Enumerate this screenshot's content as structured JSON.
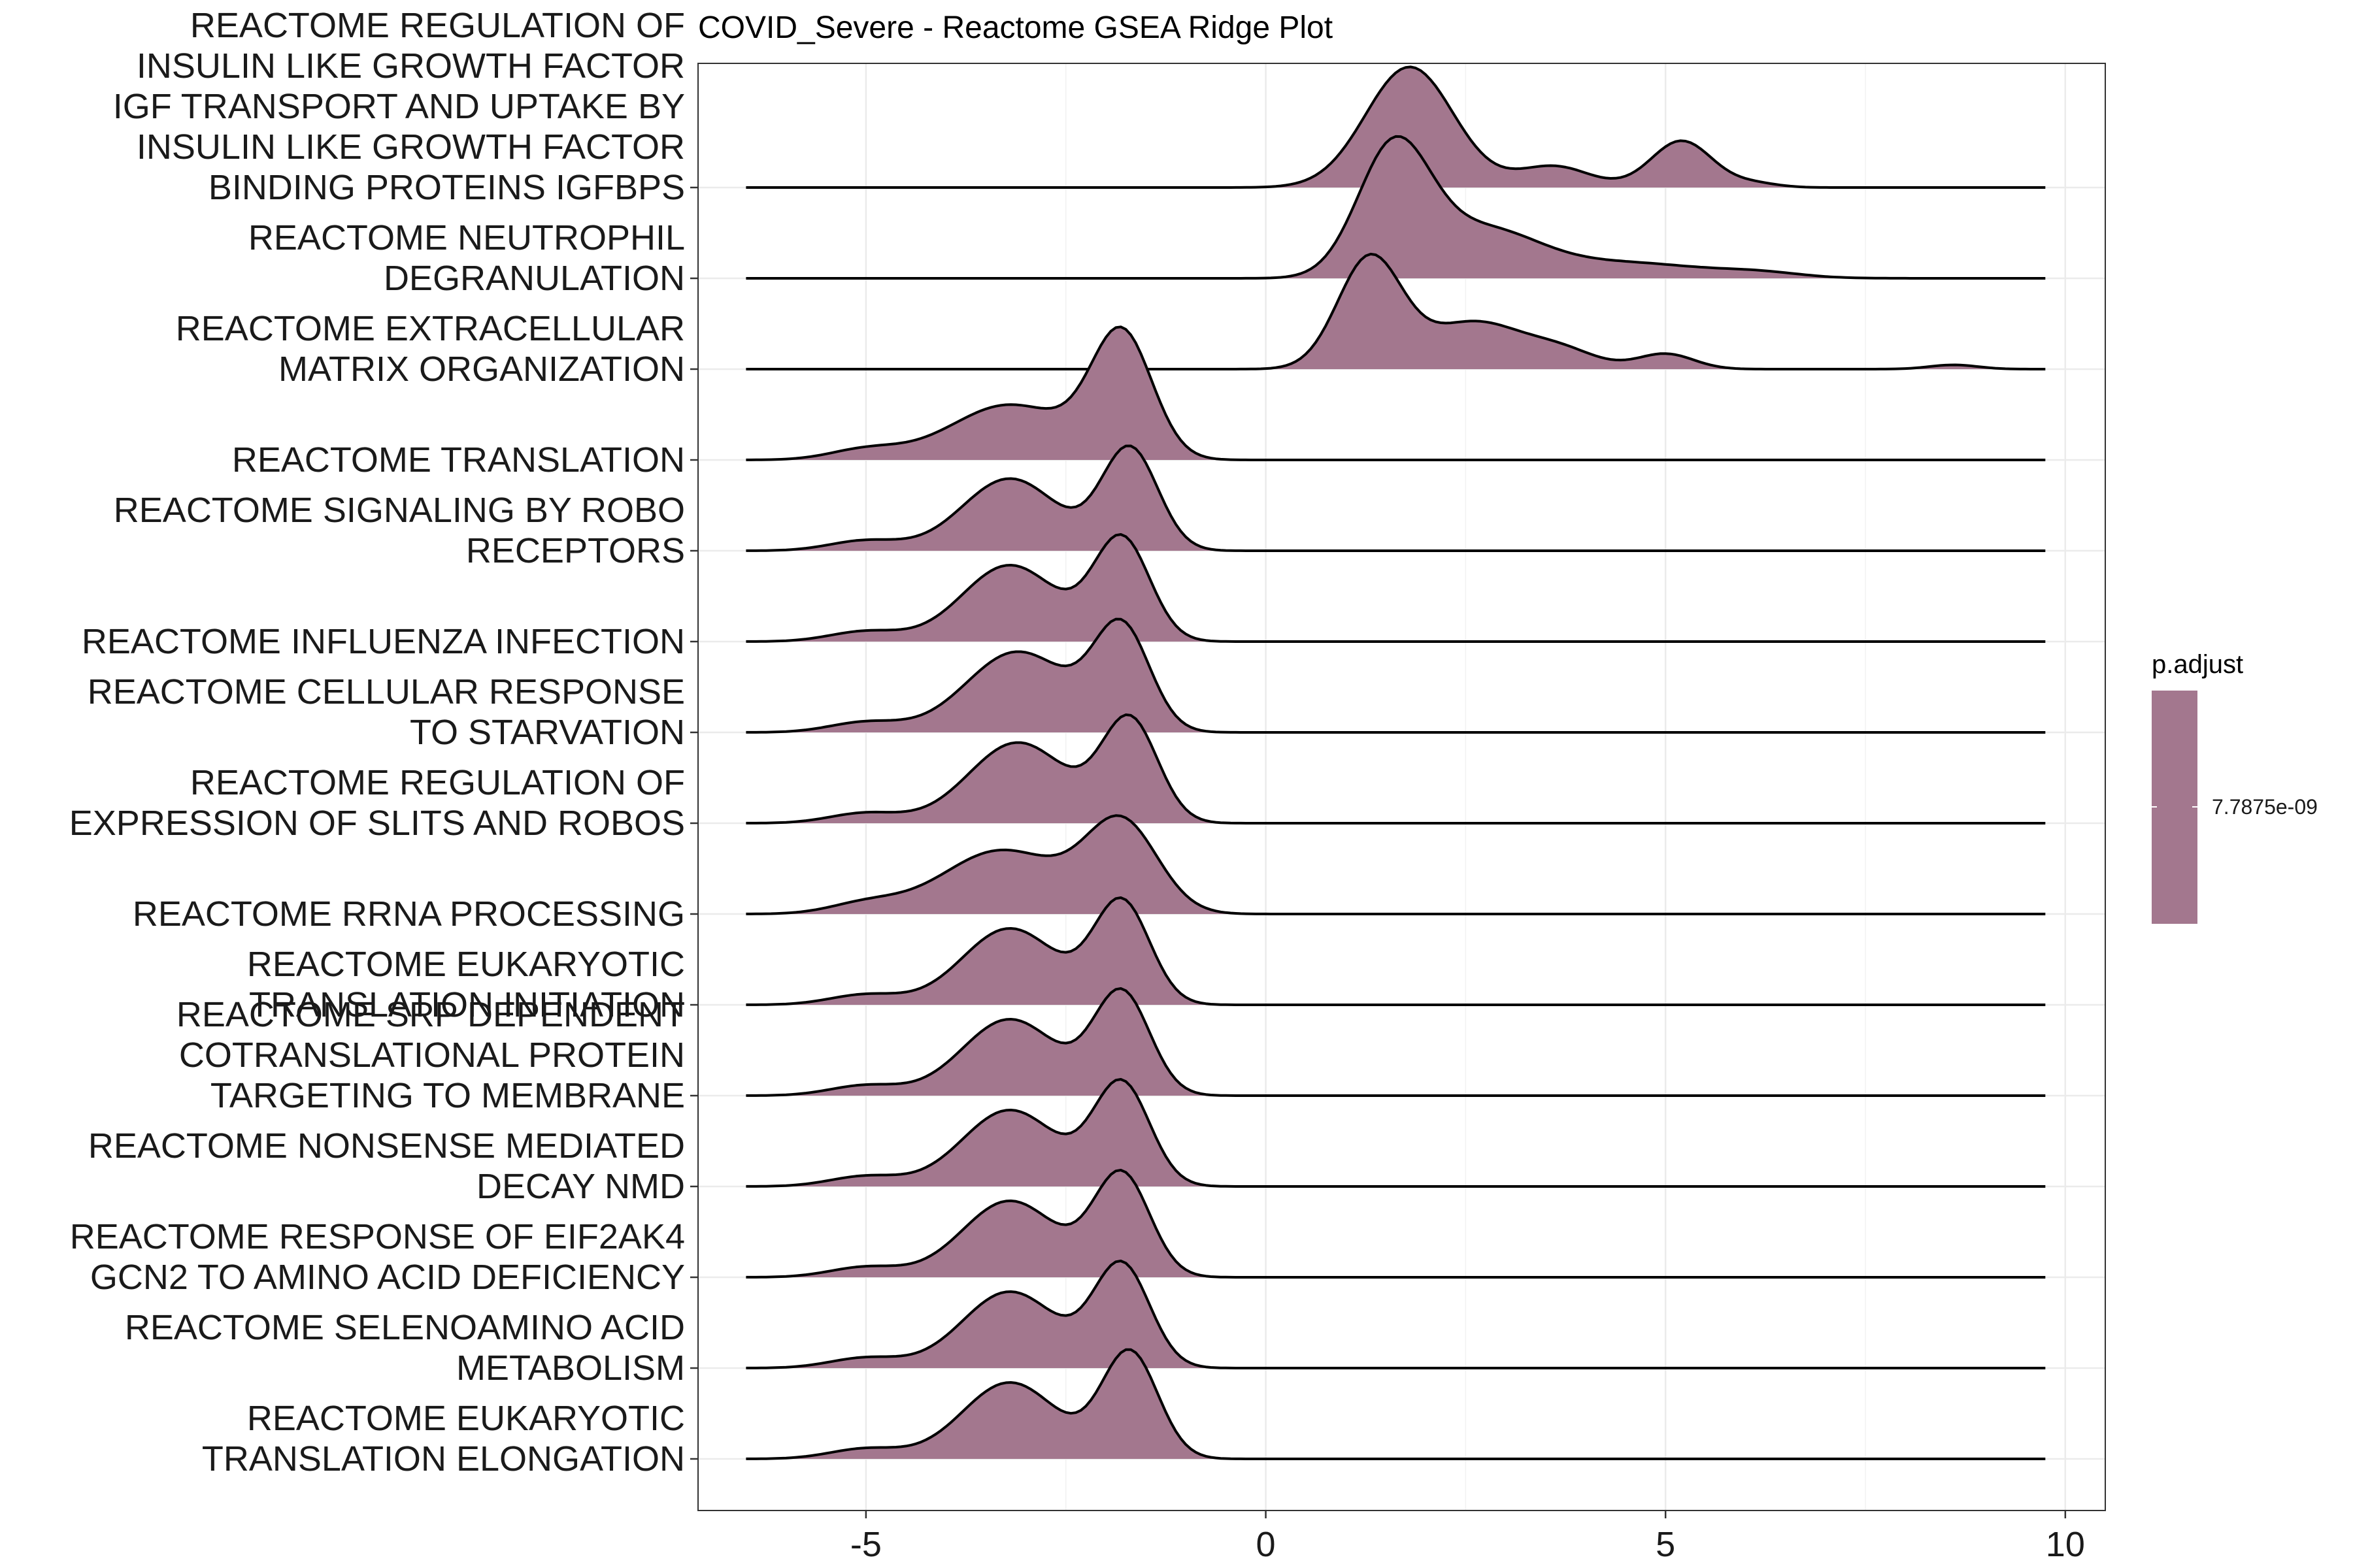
{
  "chart_data": {
    "type": "ridge",
    "title": "COVID_Severe - Reactome GSEA Ridge Plot",
    "xlabel": "",
    "ylabel": "",
    "xlim": [
      -7.1,
      10.5
    ],
    "x_ticks": [
      -5,
      0,
      5,
      10
    ],
    "x_range_of_densities": [
      -6.5,
      9.75
    ],
    "grid": true,
    "fill_color": "#a3778e",
    "legend": {
      "title": "p.adjust",
      "label": "7.7875e-09",
      "color": "#a3778e",
      "position": "right"
    },
    "series": [
      {
        "name": "REACTOME REGULATION OF INSULIN LIKE GROWTH FACTOR IGF TRANSPORT AND UPTAKE BY INSULIN LIKE GROWTH FACTOR BINDING PROTEINS IGFBPS",
        "label_lines": [
          "REACTOME REGULATION OF",
          "INSULIN LIKE GROWTH FACTOR",
          "IGF TRANSPORT AND UPTAKE BY",
          "INSULIN LIKE GROWTH FACTOR",
          "BINDING PROTEINS IGFBPS"
        ],
        "peaks": [
          [
            1.8,
            1.42,
            0.55
          ],
          [
            3.6,
            0.25,
            0.45
          ],
          [
            5.2,
            0.55,
            0.38
          ],
          [
            6.1,
            0.05,
            0.3
          ]
        ]
      },
      {
        "name": "REACTOME NEUTROPHIL DEGRANULATION",
        "label_lines": [
          "REACTOME NEUTROPHIL",
          "DEGRANULATION"
        ],
        "peaks": [
          [
            1.6,
            1.5,
            0.45
          ],
          [
            2.7,
            0.55,
            0.7
          ],
          [
            4.5,
            0.18,
            1.0
          ],
          [
            6.2,
            0.05,
            0.5
          ]
        ]
      },
      {
        "name": "REACTOME EXTRACELLULAR MATRIX ORGANIZATION",
        "label_lines": [
          "REACTOME EXTRACELLULAR",
          "MATRIX ORGANIZATION"
        ],
        "peaks": [
          [
            1.3,
            1.3,
            0.4
          ],
          [
            2.6,
            0.55,
            0.6
          ],
          [
            3.7,
            0.2,
            0.45
          ],
          [
            5.0,
            0.18,
            0.35
          ],
          [
            8.6,
            0.05,
            0.3
          ]
        ]
      },
      {
        "name": "REACTOME TRANSLATION",
        "label_lines": [
          "REACTOME TRANSLATION"
        ],
        "peaks": [
          [
            -1.8,
            1.45,
            0.38
          ],
          [
            -3.2,
            0.65,
            0.75
          ],
          [
            -5.0,
            0.12,
            0.45
          ]
        ]
      },
      {
        "name": "REACTOME SIGNALING BY ROBO RECEPTORS",
        "label_lines": [
          "REACTOME SIGNALING BY ROBO",
          "RECEPTORS"
        ],
        "peaks": [
          [
            -1.7,
            1.2,
            0.35
          ],
          [
            -3.2,
            0.85,
            0.6
          ],
          [
            -5.0,
            0.12,
            0.45
          ]
        ]
      },
      {
        "name": "REACTOME INFLUENZA INFECTION",
        "label_lines": [
          "REACTOME INFLUENZA INFECTION"
        ],
        "peaks": [
          [
            -1.8,
            1.2,
            0.35
          ],
          [
            -3.2,
            0.9,
            0.6
          ],
          [
            -5.0,
            0.12,
            0.45
          ]
        ]
      },
      {
        "name": "REACTOME CELLULAR RESPONSE TO STARVATION",
        "label_lines": [
          "REACTOME CELLULAR RESPONSE",
          "TO STARVATION"
        ],
        "peaks": [
          [
            -1.8,
            1.2,
            0.35
          ],
          [
            -3.1,
            0.95,
            0.65
          ],
          [
            -5.0,
            0.12,
            0.45
          ]
        ]
      },
      {
        "name": "REACTOME REGULATION OF EXPRESSION OF SLITS AND ROBOS",
        "label_lines": [
          "REACTOME REGULATION OF",
          "EXPRESSION OF SLITS AND ROBOS"
        ],
        "peaks": [
          [
            -1.7,
            1.2,
            0.35
          ],
          [
            -3.1,
            0.95,
            0.62
          ],
          [
            -5.0,
            0.12,
            0.45
          ]
        ]
      },
      {
        "name": "REACTOME RRNA PROCESSING",
        "label_lines": [
          "REACTOME RRNA PROCESSING"
        ],
        "peaks": [
          [
            -1.8,
            1.05,
            0.45
          ],
          [
            -3.3,
            0.75,
            0.75
          ],
          [
            -5.0,
            0.12,
            0.45
          ]
        ]
      },
      {
        "name": "REACTOME EUKARYOTIC TRANSLATION INITIATION",
        "label_lines": [
          "REACTOME EUKARYOTIC",
          "TRANSLATION INITIATION"
        ],
        "peaks": [
          [
            -1.8,
            1.2,
            0.35
          ],
          [
            -3.2,
            0.9,
            0.6
          ],
          [
            -5.0,
            0.12,
            0.45
          ]
        ]
      },
      {
        "name": "REACTOME SRP DEPENDENT COTRANSLATIONAL PROTEIN TARGETING TO MEMBRANE",
        "label_lines": [
          "REACTOME SRP DEPENDENT",
          "COTRANSLATIONAL PROTEIN",
          "TARGETING TO MEMBRANE"
        ],
        "peaks": [
          [
            -1.8,
            1.2,
            0.35
          ],
          [
            -3.2,
            0.9,
            0.6
          ],
          [
            -5.0,
            0.12,
            0.45
          ]
        ]
      },
      {
        "name": "REACTOME NONSENSE MEDIATED DECAY NMD",
        "label_lines": [
          "REACTOME NONSENSE MEDIATED",
          "DECAY NMD"
        ],
        "peaks": [
          [
            -1.8,
            1.2,
            0.35
          ],
          [
            -3.2,
            0.9,
            0.6
          ],
          [
            -5.0,
            0.12,
            0.45
          ]
        ]
      },
      {
        "name": "REACTOME RESPONSE OF EIF2AK4 GCN2 TO AMINO ACID DEFICIENCY",
        "label_lines": [
          "REACTOME RESPONSE OF EIF2AK4",
          "GCN2 TO AMINO ACID DEFICIENCY"
        ],
        "peaks": [
          [
            -1.8,
            1.2,
            0.35
          ],
          [
            -3.2,
            0.9,
            0.6
          ],
          [
            -5.0,
            0.12,
            0.45
          ]
        ]
      },
      {
        "name": "REACTOME SELENOAMINO ACID METABOLISM",
        "label_lines": [
          "REACTOME SELENOAMINO ACID",
          "METABOLISM"
        ],
        "peaks": [
          [
            -1.8,
            1.2,
            0.35
          ],
          [
            -3.2,
            0.9,
            0.6
          ],
          [
            -5.0,
            0.12,
            0.45
          ]
        ]
      },
      {
        "name": "REACTOME EUKARYOTIC TRANSLATION ELONGATION",
        "label_lines": [
          "REACTOME EUKARYOTIC",
          "TRANSLATION ELONGATION"
        ],
        "peaks": [
          [
            -1.7,
            1.25,
            0.35
          ],
          [
            -3.2,
            0.9,
            0.6
          ],
          [
            -5.0,
            0.12,
            0.45
          ]
        ]
      }
    ]
  }
}
